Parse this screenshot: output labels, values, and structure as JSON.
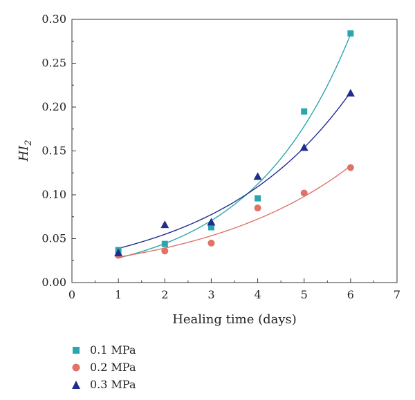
{
  "chart_data": {
    "type": "scatter",
    "xlabel": "Healing time (days)",
    "ylabel_main": "HI",
    "ylabel_sub": "2",
    "xlim": [
      0,
      7
    ],
    "ylim": [
      0,
      0.3
    ],
    "xticks": [
      "0",
      "1",
      "2",
      "3",
      "4",
      "5",
      "6",
      "7"
    ],
    "yticks": [
      "0.00",
      "0.05",
      "0.10",
      "0.15",
      "0.20",
      "0.25",
      "0.30"
    ],
    "grid": false,
    "legend_position": "bottom-left-outside",
    "series": [
      {
        "name": "0.1 MPa",
        "marker": "square",
        "color": "#2aa6ae",
        "x": [
          1,
          2,
          3,
          4,
          5,
          6
        ],
        "y": [
          0.037,
          0.044,
          0.063,
          0.096,
          0.195,
          0.284
        ],
        "fit_y": [
          0.028,
          0.043,
          0.068,
          0.108,
          0.174,
          0.283
        ]
      },
      {
        "name": "0.2 MPa",
        "marker": "circle",
        "color": "#e07268",
        "x": [
          1,
          2,
          3,
          4,
          5,
          6
        ],
        "y": [
          0.031,
          0.036,
          0.045,
          0.085,
          0.102,
          0.131
        ],
        "fit_y": [
          0.029,
          0.039,
          0.053,
          0.072,
          0.098,
          0.133
        ]
      },
      {
        "name": "0.3 MPa",
        "marker": "triangle",
        "color": "#1f2e8c",
        "x": [
          1,
          2,
          3,
          4,
          5,
          6
        ],
        "y": [
          0.034,
          0.066,
          0.069,
          0.121,
          0.154,
          0.216
        ],
        "fit_y": [
          0.039,
          0.056,
          0.079,
          0.11,
          0.155,
          0.217
        ]
      }
    ]
  }
}
